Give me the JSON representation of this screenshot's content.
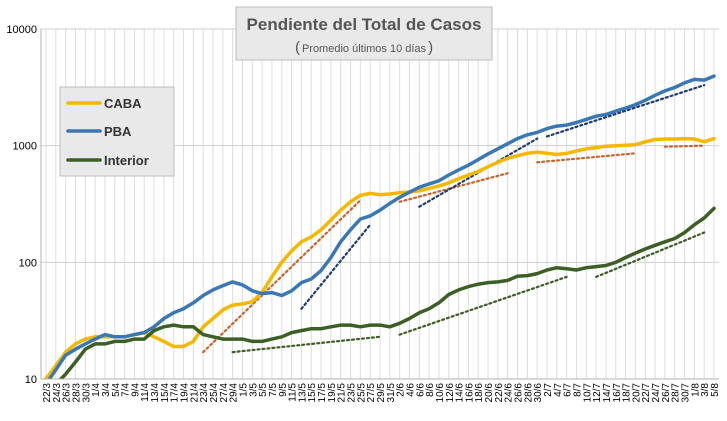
{
  "chart_data": {
    "type": "line",
    "title": "Pendiente del Total de Casos",
    "subtitle": "Promedio últimos 10 días",
    "yscale": "log",
    "ylim": [
      10,
      10000
    ],
    "yticks": [
      "10",
      "100",
      "1000",
      "10000"
    ],
    "categories": [
      "22/3",
      "24/3",
      "26/3",
      "28/3",
      "30/3",
      "1/4",
      "3/4",
      "5/4",
      "7/4",
      "9/4",
      "11/4",
      "13/4",
      "15/4",
      "17/4",
      "19/4",
      "21/4",
      "23/4",
      "25/4",
      "27/4",
      "29/4",
      "1/5",
      "3/5",
      "5/5",
      "7/5",
      "9/5",
      "11/5",
      "13/5",
      "15/5",
      "17/5",
      "19/5",
      "21/5",
      "23/5",
      "25/5",
      "27/5",
      "29/5",
      "31/5",
      "2/6",
      "4/6",
      "6/6",
      "8/6",
      "10/6",
      "12/6",
      "14/6",
      "16/6",
      "18/6",
      "20/6",
      "22/6",
      "24/6",
      "26/6",
      "28/6",
      "30/6",
      "2/7",
      "4/7",
      "6/7",
      "8/7",
      "10/7",
      "12/7",
      "14/7",
      "16/7",
      "18/7",
      "20/7",
      "22/7",
      "24/7",
      "26/7",
      "28/7",
      "30/7",
      "1/8",
      "3/8",
      "5/8"
    ],
    "colors": {
      "CABA": "#F5B800",
      "PBA": "#3A77B5",
      "Interior": "#3B5F25"
    },
    "legend_position": "left",
    "series": [
      {
        "name": "CABA",
        "values": [
          10,
          13,
          17,
          20,
          22,
          23,
          23,
          23,
          23,
          24,
          25,
          23,
          21,
          19,
          19,
          21,
          28,
          33,
          39,
          43,
          44,
          46,
          55,
          75,
          100,
          125,
          150,
          165,
          190,
          230,
          280,
          330,
          375,
          390,
          380,
          385,
          395,
          400,
          410,
          430,
          450,
          480,
          520,
          560,
          600,
          660,
          720,
          780,
          820,
          860,
          880,
          860,
          840,
          860,
          900,
          940,
          960,
          990,
          1000,
          1010,
          1020,
          1080,
          1130,
          1140,
          1140,
          1150,
          1140,
          1080,
          1150
        ]
      },
      {
        "name": "PBA",
        "values": [
          9,
          12,
          16,
          18,
          20,
          22,
          24,
          23,
          23,
          24,
          25,
          28,
          33,
          37,
          40,
          45,
          52,
          58,
          63,
          68,
          64,
          57,
          54,
          55,
          52,
          57,
          67,
          72,
          85,
          110,
          150,
          190,
          235,
          250,
          280,
          320,
          360,
          400,
          440,
          470,
          500,
          560,
          620,
          680,
          760,
          850,
          940,
          1040,
          1150,
          1240,
          1300,
          1400,
          1470,
          1500,
          1580,
          1680,
          1790,
          1850,
          1980,
          2100,
          2250,
          2450,
          2700,
          2950,
          3150,
          3450,
          3700,
          3650,
          3950
        ]
      },
      {
        "name": "Interior",
        "values": [
          7,
          9,
          11,
          14,
          18,
          20,
          20,
          21,
          21,
          22,
          22,
          26,
          28,
          29,
          28,
          28,
          24,
          23,
          22,
          22,
          22,
          21,
          21,
          22,
          23,
          25,
          26,
          27,
          27,
          28,
          29,
          29,
          28,
          29,
          29,
          28,
          30,
          33,
          37,
          40,
          45,
          53,
          58,
          62,
          65,
          67,
          68,
          70,
          76,
          77,
          80,
          86,
          90,
          88,
          86,
          90,
          92,
          94,
          100,
          110,
          120,
          130,
          140,
          150,
          160,
          180,
          210,
          240,
          290
        ]
      }
    ],
    "trendlines": [
      {
        "series": "CABA",
        "from": [
          "23/4",
          17
        ],
        "to": [
          "25/5",
          340
        ]
      },
      {
        "series": "CABA",
        "from": [
          "2/6",
          330
        ],
        "to": [
          "24/6",
          580
        ]
      },
      {
        "series": "CABA",
        "from": [
          "30/6",
          720
        ],
        "to": [
          "20/7",
          860
        ]
      },
      {
        "series": "CABA",
        "from": [
          "26/7",
          980
        ],
        "to": [
          "3/8",
          1000
        ]
      },
      {
        "series": "PBA",
        "from": [
          "13/5",
          40
        ],
        "to": [
          "27/5",
          210
        ]
      },
      {
        "series": "PBA",
        "from": [
          "6/6",
          300
        ],
        "to": [
          "30/6",
          1150
        ]
      },
      {
        "series": "PBA",
        "from": [
          "2/7",
          1200
        ],
        "to": [
          "3/8",
          3300
        ]
      },
      {
        "series": "Interior",
        "from": [
          "29/4",
          17
        ],
        "to": [
          "29/5",
          23
        ]
      },
      {
        "series": "Interior",
        "from": [
          "2/6",
          24
        ],
        "to": [
          "6/7",
          75
        ]
      },
      {
        "series": "Interior",
        "from": [
          "12/7",
          75
        ],
        "to": [
          "3/8",
          180
        ]
      }
    ]
  }
}
